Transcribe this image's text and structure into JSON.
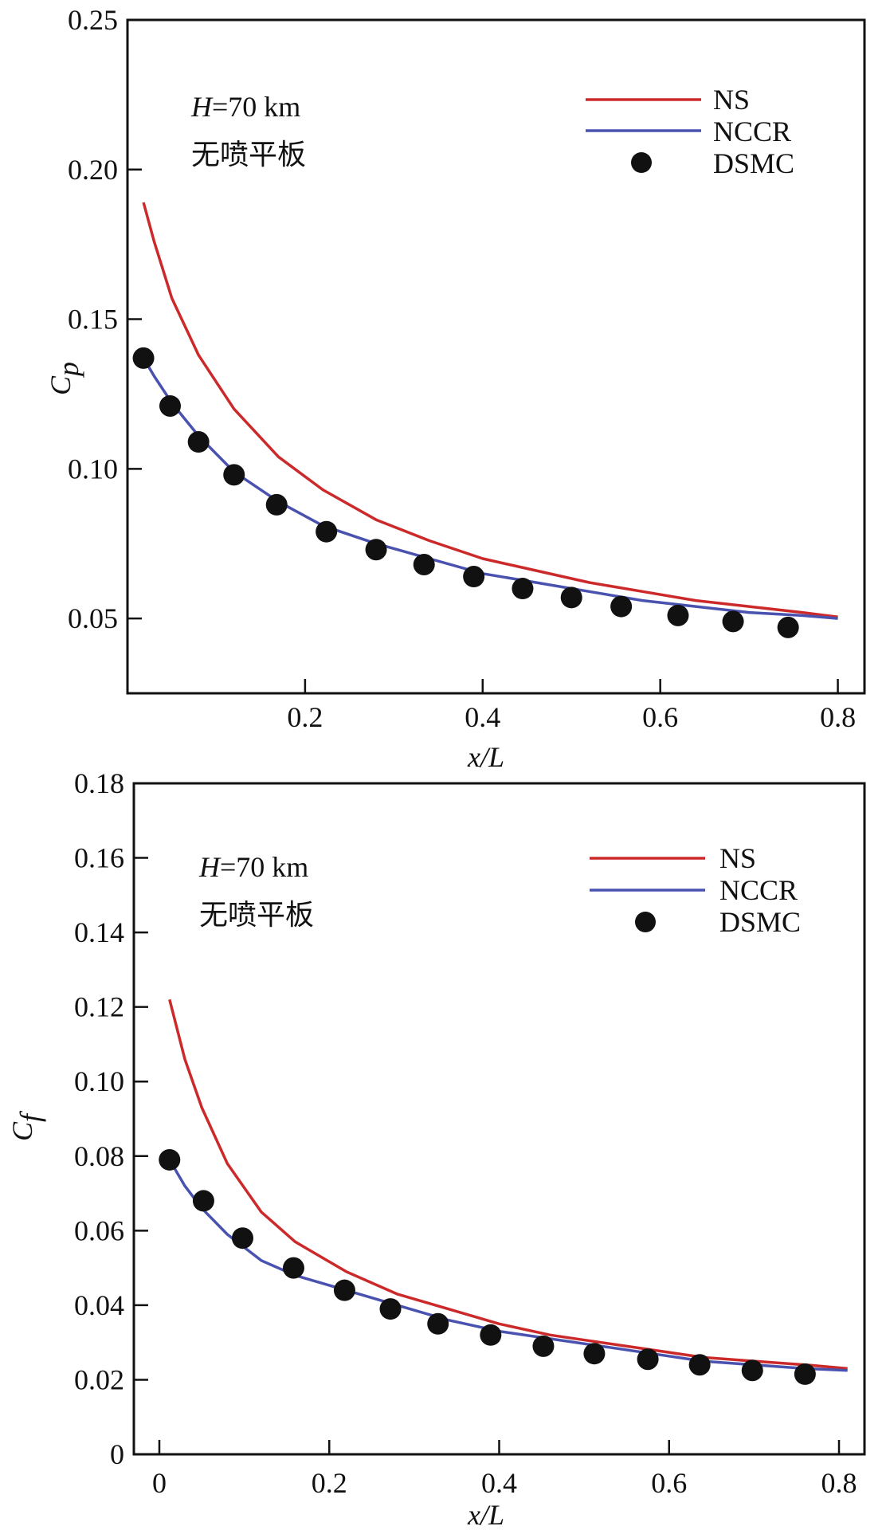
{
  "chart_data": [
    {
      "type": "line",
      "xlabel": "x/L",
      "ylabel_base": "C",
      "ylabel_sub": "p",
      "xlim": [
        0,
        0.83
      ],
      "ylim": [
        0.025,
        0.25
      ],
      "xticks": [
        0.2,
        0.4,
        0.6,
        0.8
      ],
      "xtick_labels": [
        "0.2",
        "0.4",
        "0.6",
        "0.8"
      ],
      "yticks": [
        0.05,
        0.1,
        0.15,
        0.2,
        0.25
      ],
      "ytick_labels": [
        "0.05",
        "0.10",
        "0.15",
        "0.20",
        "0.25"
      ],
      "annotation_italic": "H",
      "annotation_rest": "=70 km",
      "annotation_cn": "无喷平板",
      "legend_position": "top-right",
      "colors": {
        "NS": "#cc2a2a",
        "NCCR": "#4a52b0",
        "DSMC": "#111111"
      },
      "series": [
        {
          "name": "NS",
          "style": "line",
          "x": [
            0.018,
            0.03,
            0.05,
            0.08,
            0.12,
            0.17,
            0.22,
            0.28,
            0.34,
            0.4,
            0.46,
            0.52,
            0.58,
            0.64,
            0.7,
            0.76,
            0.8
          ],
          "y": [
            0.189,
            0.176,
            0.157,
            0.138,
            0.12,
            0.104,
            0.093,
            0.083,
            0.076,
            0.07,
            0.066,
            0.062,
            0.059,
            0.056,
            0.054,
            0.052,
            0.0505
          ]
        },
        {
          "name": "NCCR",
          "style": "line",
          "x": [
            0.018,
            0.03,
            0.05,
            0.08,
            0.12,
            0.17,
            0.22,
            0.28,
            0.34,
            0.4,
            0.46,
            0.52,
            0.58,
            0.64,
            0.7,
            0.76,
            0.8
          ],
          "y": [
            0.137,
            0.131,
            0.122,
            0.111,
            0.099,
            0.089,
            0.081,
            0.075,
            0.07,
            0.065,
            0.062,
            0.059,
            0.056,
            0.054,
            0.052,
            0.051,
            0.05
          ]
        },
        {
          "name": "DSMC",
          "style": "marker",
          "x": [
            0.018,
            0.048,
            0.08,
            0.12,
            0.168,
            0.224,
            0.28,
            0.334,
            0.39,
            0.445,
            0.5,
            0.556,
            0.62,
            0.682,
            0.744
          ],
          "y": [
            0.137,
            0.121,
            0.109,
            0.098,
            0.088,
            0.079,
            0.073,
            0.068,
            0.064,
            0.06,
            0.057,
            0.054,
            0.051,
            0.049,
            0.047
          ]
        }
      ]
    },
    {
      "type": "line",
      "xlabel": "x/L",
      "ylabel_base": "C",
      "ylabel_sub": "f",
      "xlim": [
        -0.03,
        0.83
      ],
      "ylim": [
        0,
        0.18
      ],
      "xticks": [
        0,
        0.2,
        0.4,
        0.6,
        0.8
      ],
      "xtick_labels": [
        "0",
        "0.2",
        "0.4",
        "0.6",
        "0.8"
      ],
      "yticks": [
        0,
        0.02,
        0.04,
        0.06,
        0.08,
        0.1,
        0.12,
        0.14,
        0.16,
        0.18
      ],
      "ytick_labels": [
        "0",
        "0.02",
        "0.04",
        "0.06",
        "0.08",
        "0.10",
        "0.12",
        "0.14",
        "0.16",
        "0.18"
      ],
      "annotation_italic": "H",
      "annotation_rest": "=70 km",
      "annotation_cn": "无喷平板",
      "legend_position": "top-right",
      "colors": {
        "NS": "#cc2a2a",
        "NCCR": "#4a52b0",
        "DSMC": "#111111"
      },
      "series": [
        {
          "name": "NS",
          "style": "line",
          "x": [
            0.012,
            0.03,
            0.05,
            0.08,
            0.12,
            0.16,
            0.22,
            0.28,
            0.34,
            0.4,
            0.46,
            0.52,
            0.58,
            0.64,
            0.7,
            0.76,
            0.81
          ],
          "y": [
            0.122,
            0.106,
            0.093,
            0.078,
            0.065,
            0.057,
            0.049,
            0.043,
            0.039,
            0.035,
            0.032,
            0.03,
            0.028,
            0.026,
            0.025,
            0.024,
            0.023
          ]
        },
        {
          "name": "NCCR",
          "style": "line",
          "x": [
            0.012,
            0.03,
            0.05,
            0.08,
            0.12,
            0.16,
            0.22,
            0.28,
            0.34,
            0.4,
            0.46,
            0.52,
            0.58,
            0.64,
            0.7,
            0.76,
            0.81
          ],
          "y": [
            0.079,
            0.072,
            0.066,
            0.059,
            0.052,
            0.048,
            0.044,
            0.04,
            0.036,
            0.033,
            0.031,
            0.029,
            0.027,
            0.025,
            0.024,
            0.023,
            0.0225
          ]
        },
        {
          "name": "DSMC",
          "style": "marker",
          "x": [
            0.012,
            0.052,
            0.098,
            0.158,
            0.218,
            0.272,
            0.328,
            0.39,
            0.452,
            0.512,
            0.575,
            0.636,
            0.698,
            0.76
          ],
          "y": [
            0.079,
            0.068,
            0.058,
            0.05,
            0.044,
            0.039,
            0.035,
            0.032,
            0.029,
            0.027,
            0.0255,
            0.024,
            0.0225,
            0.0215
          ]
        }
      ]
    }
  ]
}
